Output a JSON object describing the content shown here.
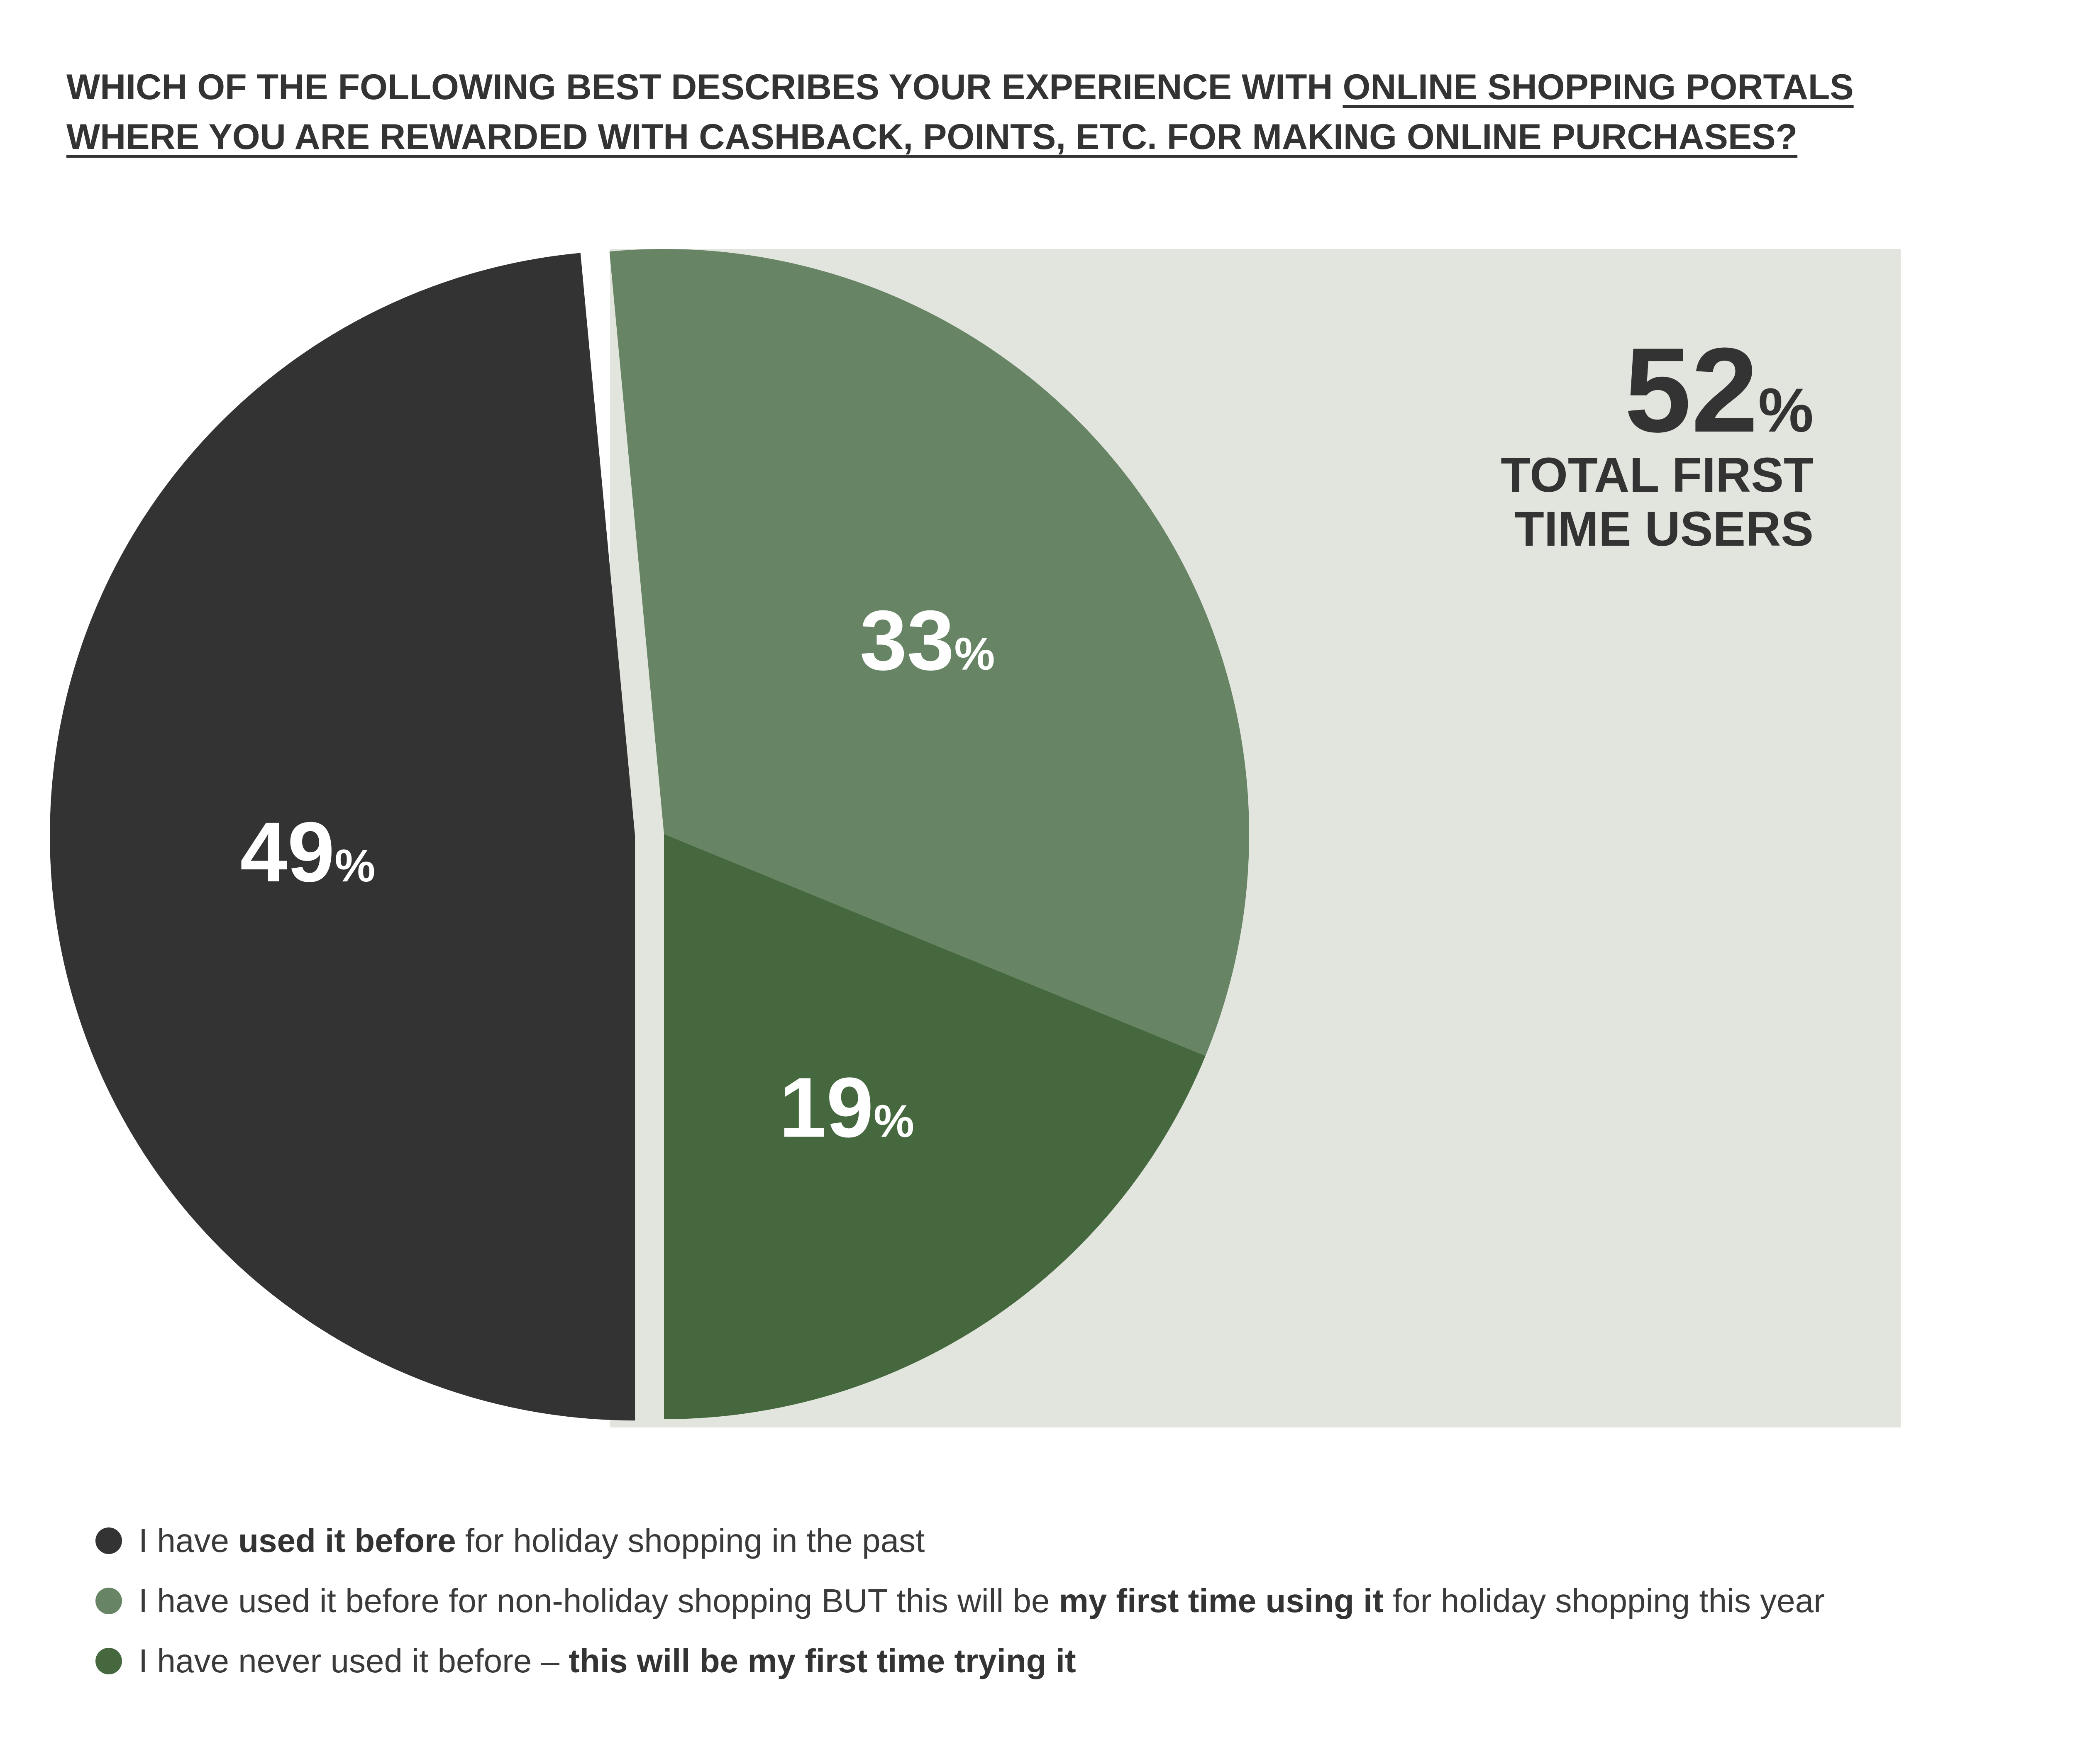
{
  "title": {
    "line1_plain": "WHICH OF THE FOLLOWING BEST DESCRIBES YOUR EXPERIENCE WITH ",
    "line1_underlined": "ONLINE SHOPPING PORTALS",
    "line2_underlined": "WHERE YOU ARE REWARDED WITH CASHBACK, POINTS, ETC. FOR MAKING ONLINE PURCHASES?"
  },
  "chart_data": {
    "type": "pie",
    "title": "WHICH OF THE FOLLOWING BEST DESCRIBES YOUR EXPERIENCE WITH ONLINE SHOPPING PORTALS WHERE YOU ARE REWARDED WITH CASHBACK, POINTS, ETC. FOR MAKING ONLINE PURCHASES?",
    "unit": "%",
    "slices": [
      {
        "key": "used-before",
        "value": 49,
        "label_number": "49",
        "label_unit": "%",
        "color": "#333333"
      },
      {
        "key": "non-holiday",
        "value": 33,
        "label_number": "33",
        "label_unit": "%",
        "color": "#678464"
      },
      {
        "key": "never-used",
        "value": 19,
        "label_number": "19",
        "label_unit": "%",
        "color": "#46683e"
      }
    ],
    "highlight": {
      "value": 52,
      "number": "52",
      "unit": "%",
      "line1": "TOTAL FIRST",
      "line2": "TIME USERS",
      "background_color": "#e2e5dd"
    },
    "legend_placement": "bottom"
  },
  "legend": [
    {
      "pre": "I have ",
      "bold": "used it before",
      "post": " for holiday shopping in the past",
      "color": "#333333"
    },
    {
      "pre": "I have used it before for non-holiday shopping BUT this will be ",
      "bold": "my first time using it",
      "post": " for holiday shopping this year",
      "color": "#678464"
    },
    {
      "pre": "I have never used it before – ",
      "bold": "this will be my first time trying it",
      "post": "",
      "color": "#46683e"
    }
  ]
}
